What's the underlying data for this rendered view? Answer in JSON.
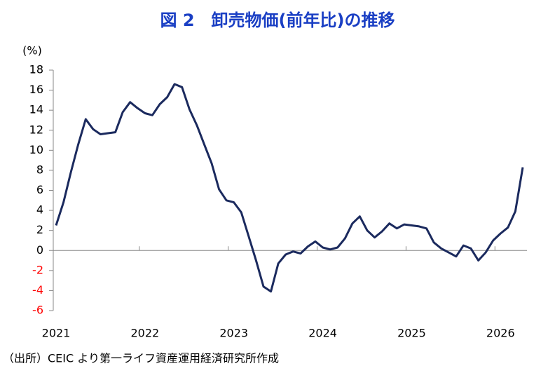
{
  "chart_data": {
    "type": "line",
    "title": "図 2　卸売物価(前年比)の推移",
    "ylabel": "(%)",
    "source": "（出所）CEIC より第一ライフ資産運用経済研究所作成",
    "categories": [
      "2021",
      null,
      null,
      null,
      null,
      null,
      null,
      null,
      null,
      null,
      null,
      null,
      "2022",
      null,
      null,
      null,
      null,
      null,
      null,
      null,
      null,
      null,
      null,
      null,
      "2023",
      null,
      null,
      null,
      null,
      null,
      null,
      null,
      null,
      null,
      null,
      null,
      "2024",
      null,
      null,
      null,
      null,
      null,
      null,
      null,
      null,
      null,
      null,
      null,
      "2025",
      null,
      null,
      null,
      null,
      null,
      null,
      null,
      null,
      null,
      null,
      null,
      "2026",
      null,
      null,
      null
    ],
    "series": [
      {
        "color": "#1b2a5e",
        "values": [
          2.5,
          4.8,
          7.8,
          10.6,
          13.1,
          12.1,
          11.6,
          11.7,
          11.8,
          13.8,
          14.8,
          14.2,
          13.7,
          13.5,
          14.6,
          15.3,
          16.6,
          16.3,
          14.1,
          12.5,
          10.6,
          8.7,
          6.1,
          5.0,
          4.8,
          3.8,
          1.4,
          -1.0,
          -3.6,
          -4.1,
          -1.3,
          -0.4,
          -0.1,
          -0.3,
          0.4,
          0.9,
          0.3,
          0.1,
          0.3,
          1.2,
          2.7,
          3.4,
          2.0,
          1.3,
          1.9,
          2.7,
          2.2,
          2.6,
          2.5,
          2.4,
          2.2,
          0.8,
          0.2,
          -0.2,
          -0.6,
          0.5,
          0.2,
          -1.0,
          -0.2,
          1.0,
          1.7,
          2.3,
          3.9,
          8.3
        ]
      }
    ],
    "ylim": [
      -6,
      18
    ],
    "yticks": [
      -6,
      -4,
      -2,
      0,
      2,
      4,
      6,
      8,
      10,
      12,
      14,
      16,
      18
    ],
    "negative_tick_color": "#ff0000",
    "title_color": "#1a3fc4"
  }
}
